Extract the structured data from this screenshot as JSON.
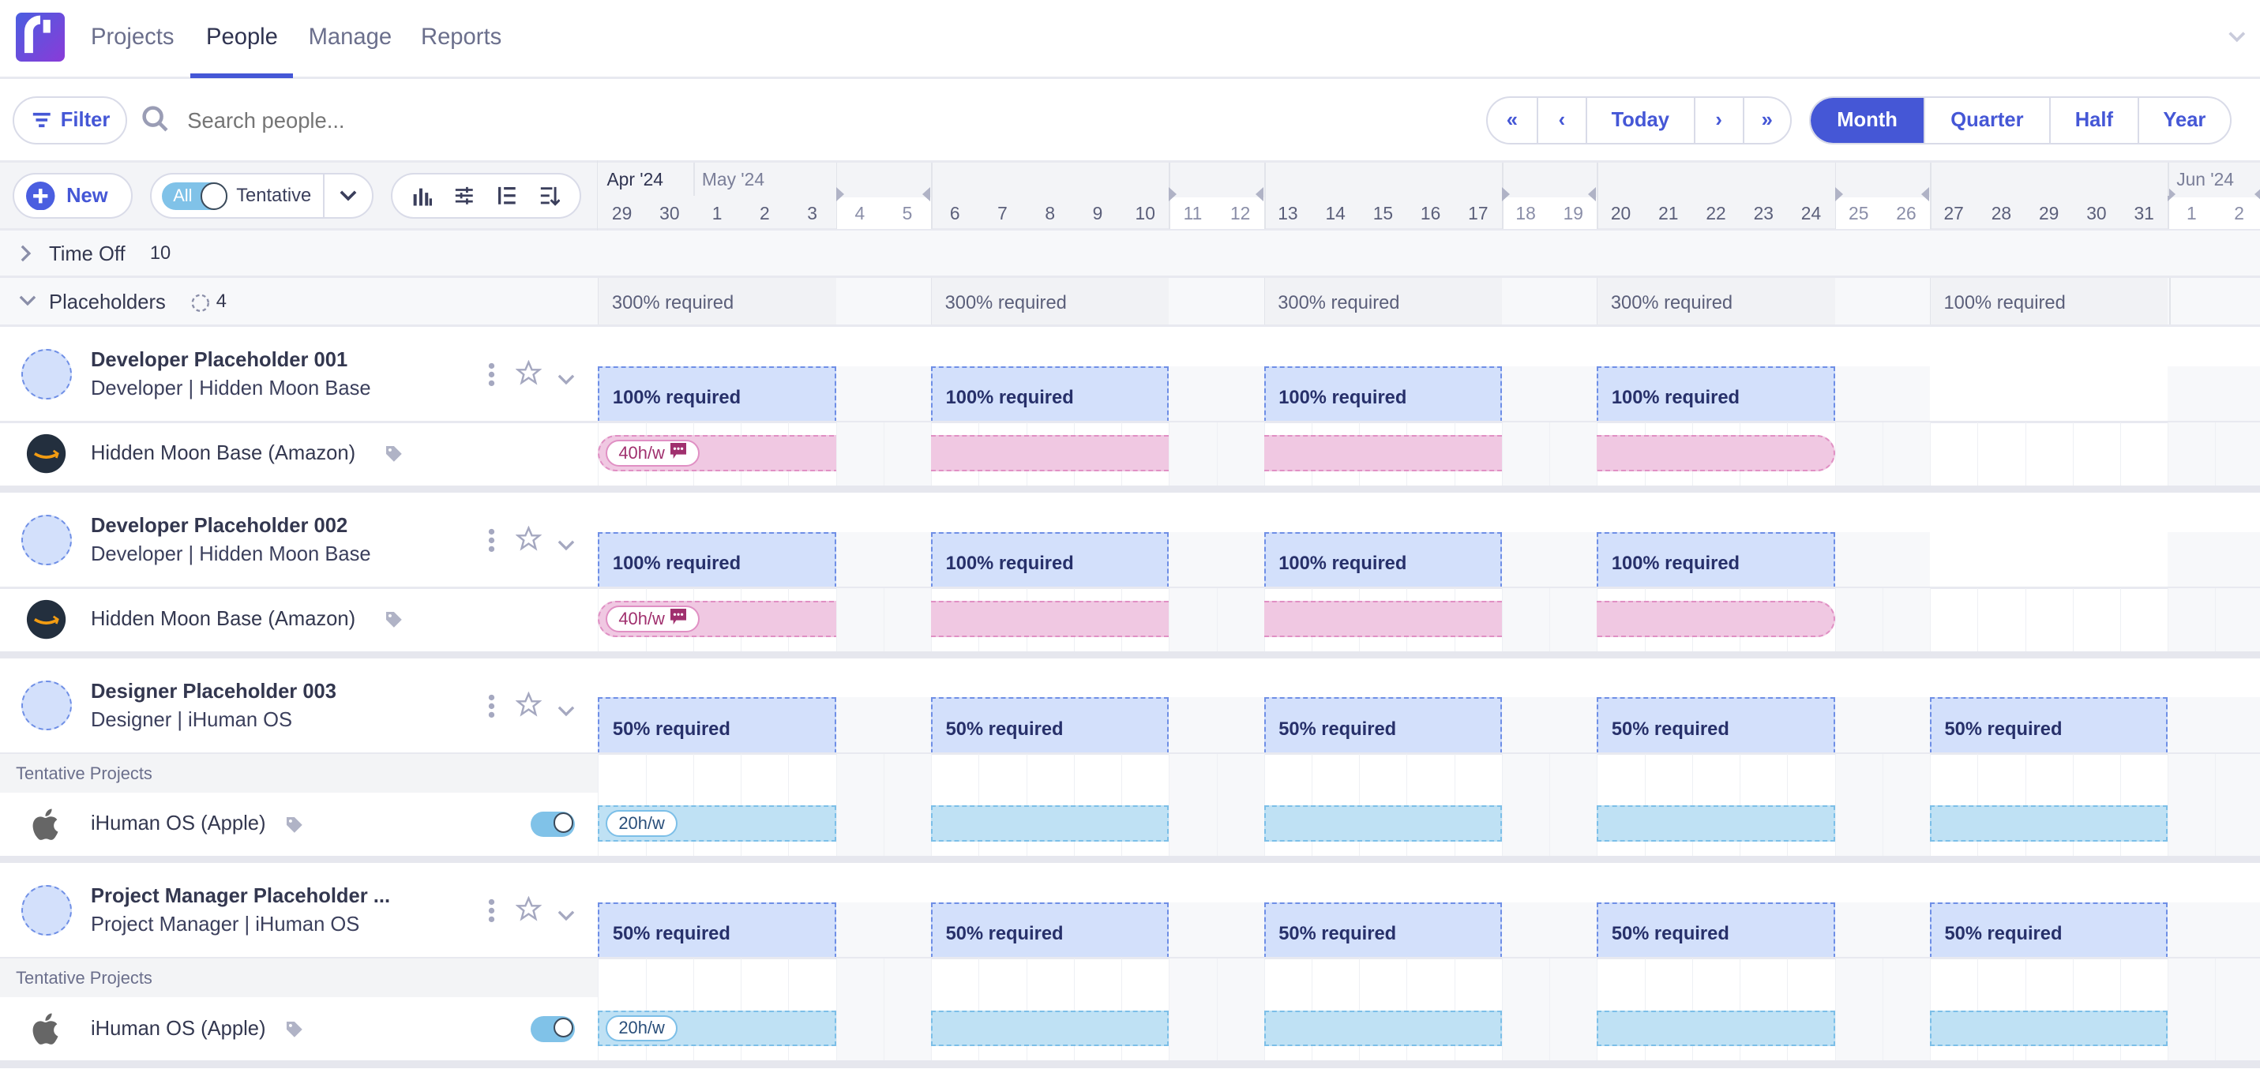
{
  "nav": {
    "tabs": [
      {
        "label": "Projects"
      },
      {
        "label": "People",
        "active": true
      },
      {
        "label": "Manage"
      },
      {
        "label": "Reports"
      }
    ],
    "accent": "#4557d6"
  },
  "toolbar": {
    "filter_label": "Filter",
    "search_placeholder": "Search people...",
    "today_label": "Today",
    "views": [
      "Month",
      "Quarter",
      "Half",
      "Year"
    ],
    "active_view": "Month"
  },
  "controls": {
    "new_label": "New",
    "all_label": "All",
    "tentative_label": "Tentative"
  },
  "timeline": {
    "months": [
      {
        "label": "Apr '24",
        "start": 0
      },
      {
        "label": "May '24",
        "start": 2
      },
      {
        "label": "Jun '24",
        "start": 33
      }
    ],
    "days": [
      "29",
      "30",
      "1",
      "2",
      "3",
      "4",
      "5",
      "6",
      "7",
      "8",
      "9",
      "10",
      "11",
      "12",
      "13",
      "14",
      "15",
      "16",
      "17",
      "18",
      "19",
      "20",
      "21",
      "22",
      "23",
      "24",
      "25",
      "26",
      "27",
      "28",
      "29",
      "30",
      "31",
      "1",
      "2"
    ],
    "weekend_days": [
      5,
      6,
      12,
      13,
      19,
      20,
      26,
      27,
      33,
      34
    ]
  },
  "groups": {
    "time_off": {
      "label": "Time Off",
      "count": "10"
    },
    "placeholders": {
      "label": "Placeholders",
      "count": "4",
      "summary": [
        {
          "week": 0,
          "text": "300% required"
        },
        {
          "week": 1,
          "text": "300% required"
        },
        {
          "week": 2,
          "text": "300% required"
        },
        {
          "week": 3,
          "text": "300% required"
        },
        {
          "week": 4,
          "text": "100% required"
        }
      ]
    }
  },
  "people": [
    {
      "name": "Developer Placeholder 001",
      "role": "Developer | Hidden Moon Base",
      "required": "100% required",
      "req_weeks": [
        0,
        1,
        2,
        3
      ],
      "tentative": false,
      "project": {
        "name": "Hidden Moon Base (Amazon)",
        "logo": "amazon",
        "hours": "40h/w",
        "color": "pink",
        "weeks": [
          0,
          1,
          2,
          3
        ],
        "comment": true
      }
    },
    {
      "name": "Developer Placeholder 002",
      "role": "Developer | Hidden Moon Base",
      "required": "100% required",
      "req_weeks": [
        0,
        1,
        2,
        3
      ],
      "tentative": false,
      "project": {
        "name": "Hidden Moon Base (Amazon)",
        "logo": "amazon",
        "hours": "40h/w",
        "color": "pink",
        "weeks": [
          0,
          1,
          2,
          3
        ],
        "comment": true
      }
    },
    {
      "name": "Designer Placeholder 003",
      "role": "Designer | iHuman OS",
      "required": "50% required",
      "req_weeks": [
        0,
        1,
        2,
        3,
        4
      ],
      "tentative": true,
      "tentative_label": "Tentative Projects",
      "project": {
        "name": "iHuman OS (Apple)",
        "logo": "apple",
        "hours": "20h/w",
        "color": "blue",
        "weeks": [
          0,
          1,
          2,
          3,
          4
        ],
        "comment": false,
        "toggle_on": true
      }
    },
    {
      "name": "Project Manager Placeholder ...",
      "role": "Project Manager | iHuman OS",
      "required": "50% required",
      "req_weeks": [
        0,
        1,
        2,
        3,
        4
      ],
      "tentative": true,
      "tentative_label": "Tentative Projects",
      "project": {
        "name": "iHuman OS (Apple)",
        "logo": "apple",
        "hours": "20h/w",
        "color": "blue",
        "weeks": [
          0,
          1,
          2,
          3,
          4
        ],
        "comment": false,
        "toggle_on": true
      }
    }
  ]
}
